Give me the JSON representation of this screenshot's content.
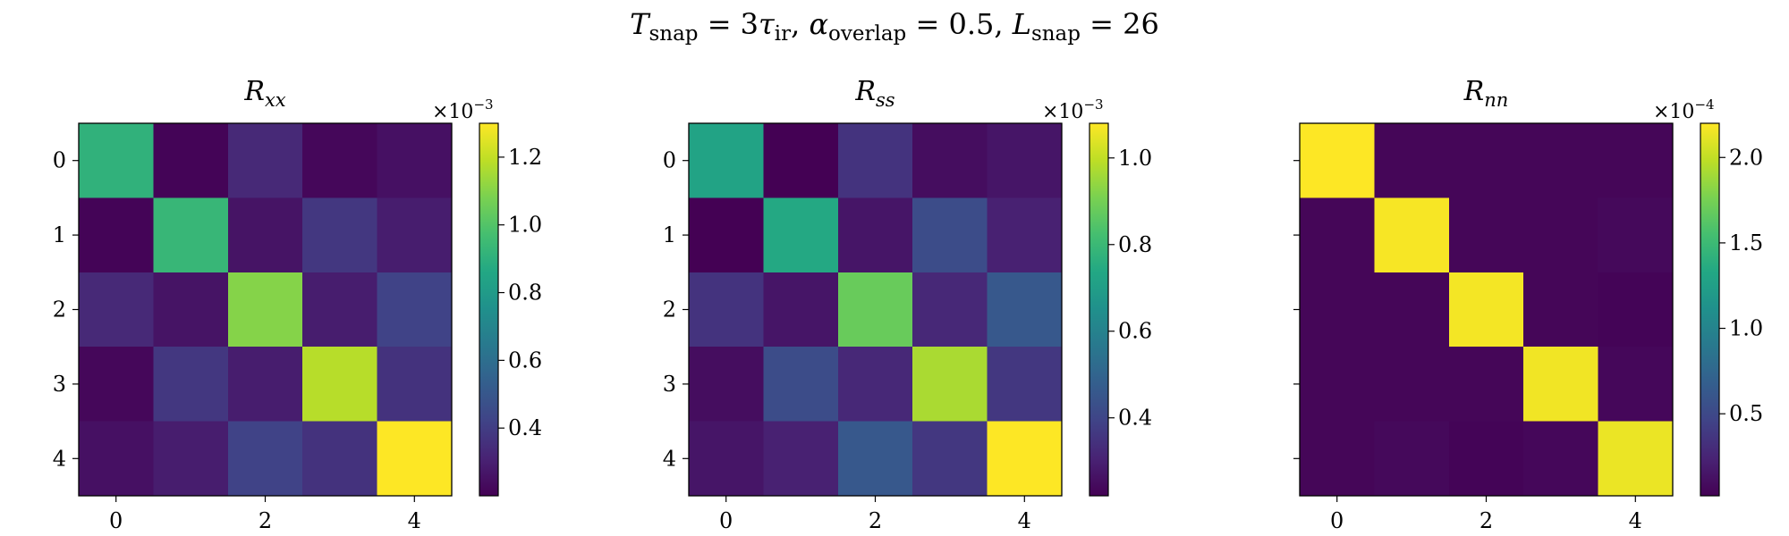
{
  "suptitle": {
    "parts": [
      {
        "t": "T",
        "italic": true
      },
      {
        "t": "snap",
        "sub": true
      },
      {
        "t": " = 3"
      },
      {
        "t": "τ",
        "italic": true
      },
      {
        "t": "ir",
        "sub": true
      },
      {
        "t": ",    "
      },
      {
        "t": "α",
        "italic": true
      },
      {
        "t": "overlap",
        "sub": true
      },
      {
        "t": " = 0.5,    "
      },
      {
        "t": "L",
        "italic": true
      },
      {
        "t": "snap",
        "sub": true
      },
      {
        "t": " = 26"
      }
    ]
  },
  "chart_data": [
    {
      "type": "heatmap",
      "title": {
        "main": "R",
        "sub": "xx"
      },
      "x_ticks": [
        "0",
        "2",
        "4"
      ],
      "y_ticks": [
        "0",
        "1",
        "2",
        "3",
        "4"
      ],
      "scale_base": "×10",
      "scale_exp": "−3",
      "vmin": 0.2,
      "vmax": 1.3,
      "colorbar_ticks": [
        "0.4",
        "0.6",
        "0.8",
        "1.0",
        "1.2"
      ],
      "matrix": [
        [
          0.91,
          0.21,
          0.33,
          0.22,
          0.25
        ],
        [
          0.21,
          0.93,
          0.26,
          0.38,
          0.29
        ],
        [
          0.33,
          0.26,
          1.1,
          0.29,
          0.42
        ],
        [
          0.22,
          0.38,
          0.29,
          1.18,
          0.36
        ],
        [
          0.25,
          0.29,
          0.42,
          0.36,
          1.3
        ]
      ]
    },
    {
      "type": "heatmap",
      "title": {
        "main": "R",
        "sub": "ss"
      },
      "x_ticks": [
        "0",
        "2",
        "4"
      ],
      "y_ticks": [
        "0",
        "1",
        "2",
        "3",
        "4"
      ],
      "scale_base": "×10",
      "scale_exp": "−3",
      "vmin": 0.22,
      "vmax": 1.08,
      "colorbar_ticks": [
        "0.4",
        "0.6",
        "0.8",
        "1.0"
      ],
      "matrix": [
        [
          0.72,
          0.22,
          0.35,
          0.25,
          0.27
        ],
        [
          0.22,
          0.74,
          0.27,
          0.42,
          0.3
        ],
        [
          0.35,
          0.27,
          0.88,
          0.32,
          0.46
        ],
        [
          0.25,
          0.42,
          0.32,
          0.97,
          0.36
        ],
        [
          0.27,
          0.3,
          0.46,
          0.36,
          1.08
        ]
      ]
    },
    {
      "type": "heatmap",
      "title": {
        "main": "R",
        "sub": "nn"
      },
      "x_ticks": [
        "0",
        "2",
        "4"
      ],
      "y_ticks": [
        "",
        "",
        "",
        "",
        ""
      ],
      "scale_base": "×10",
      "scale_exp": "−4",
      "vmin": 0.02,
      "vmax": 2.2,
      "colorbar_ticks": [
        "0.5",
        "1.0",
        "1.5",
        "2.0"
      ],
      "matrix": [
        [
          2.2,
          0.05,
          0.05,
          0.05,
          0.05
        ],
        [
          0.05,
          2.18,
          0.05,
          0.05,
          0.07
        ],
        [
          0.05,
          0.05,
          2.17,
          0.05,
          0.04
        ],
        [
          0.05,
          0.05,
          0.05,
          2.16,
          0.06
        ],
        [
          0.05,
          0.07,
          0.04,
          0.06,
          2.14
        ]
      ]
    }
  ]
}
